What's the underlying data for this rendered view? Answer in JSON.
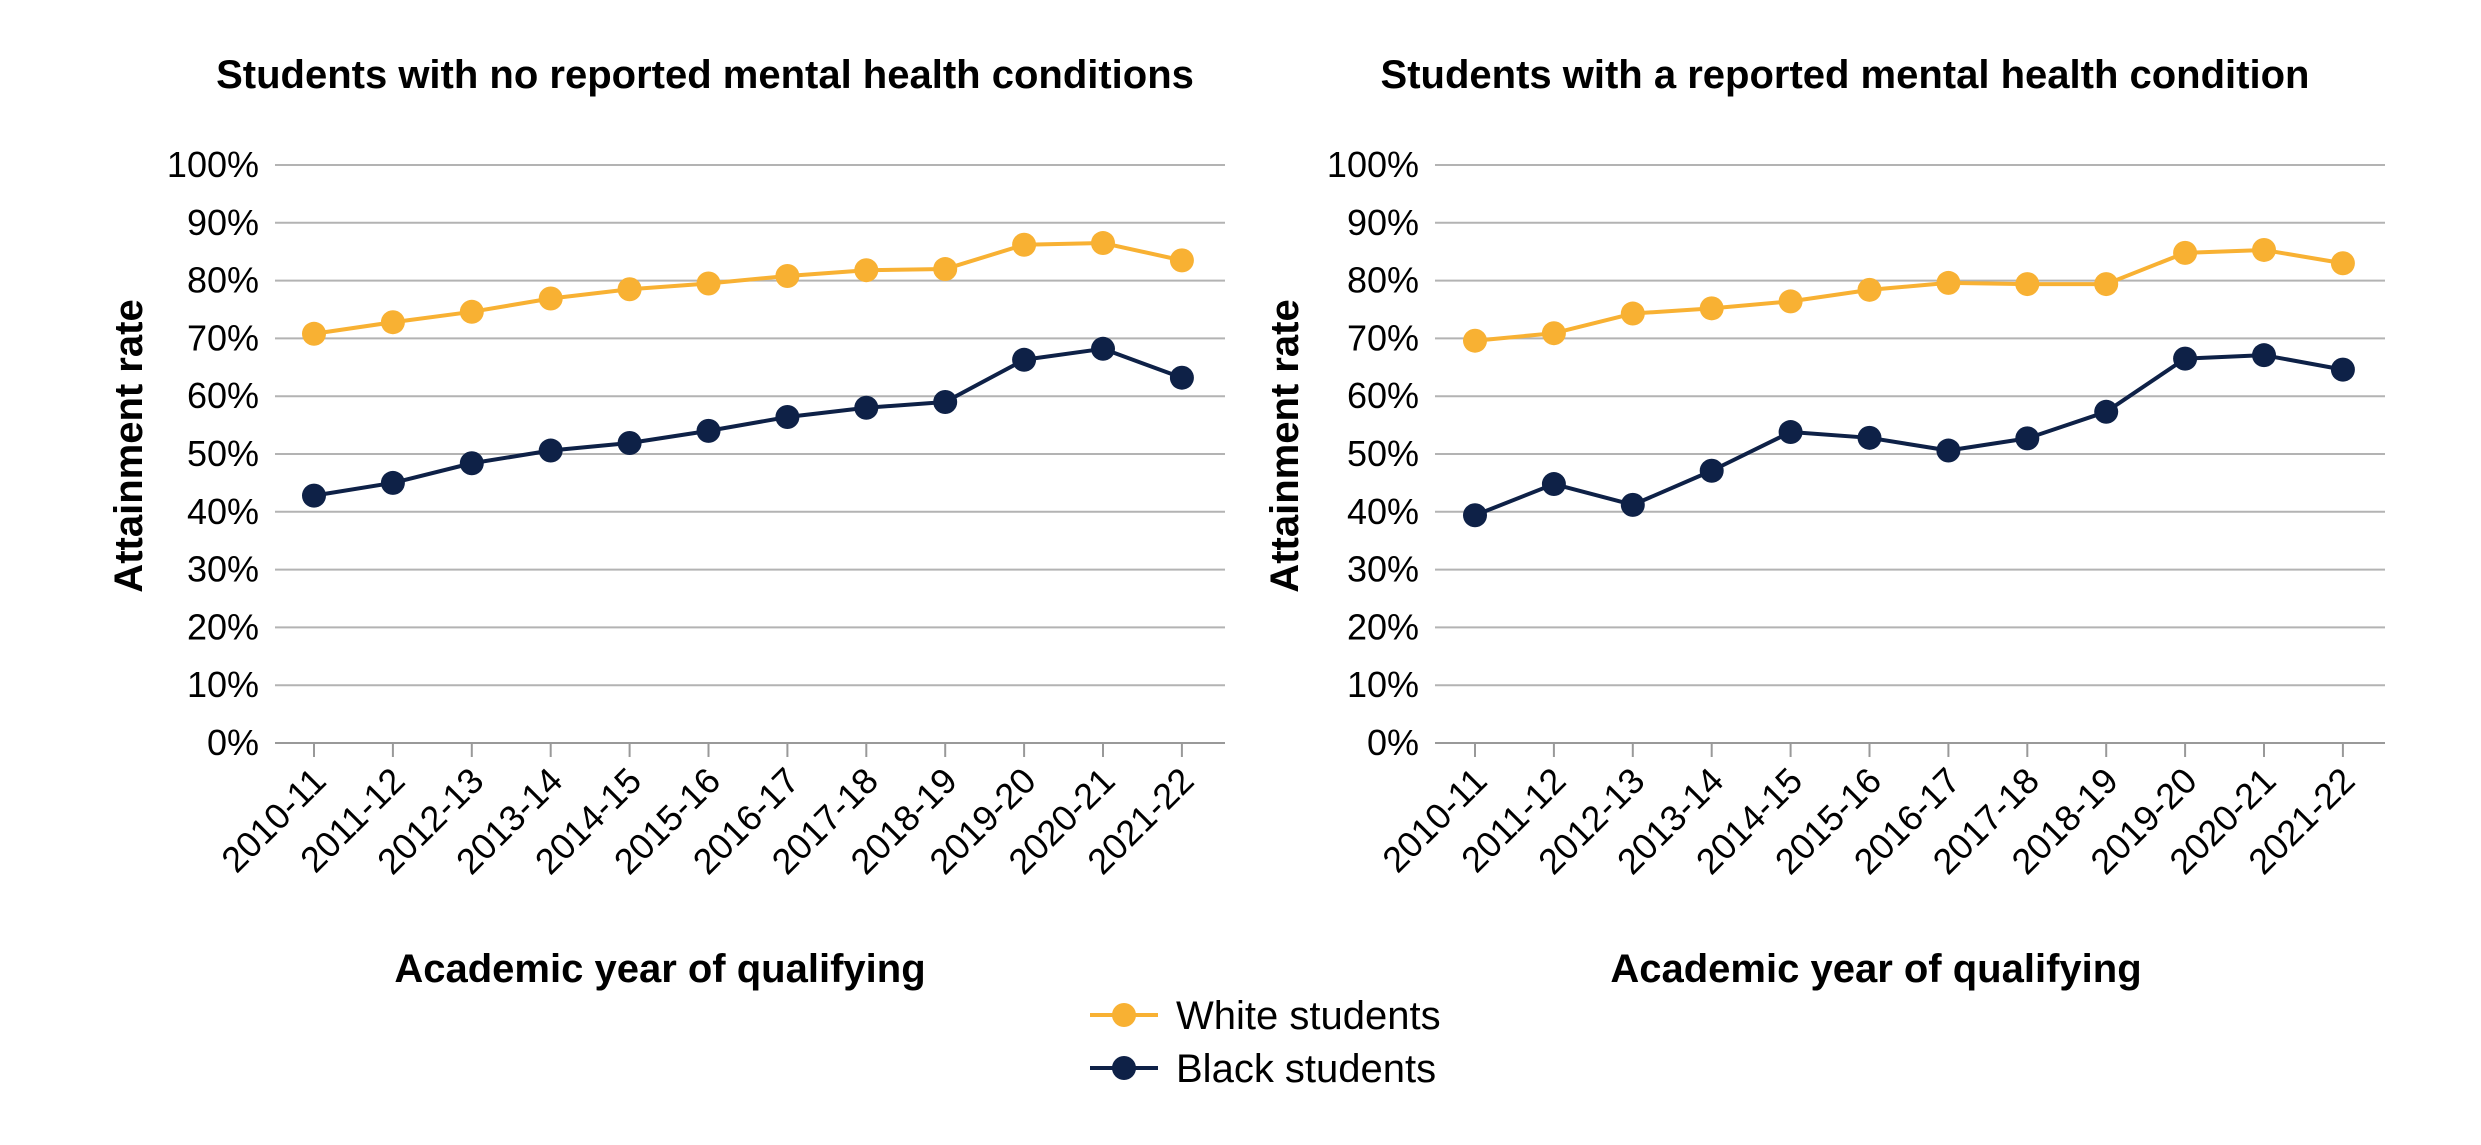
{
  "colors": {
    "white_students": "#F8B133",
    "black_students": "#0E2147",
    "gridline": "#b3b3b3",
    "axis": "#999999"
  },
  "legend": {
    "items": [
      {
        "label": "White students",
        "color": "#F8B133"
      },
      {
        "label": "Black students",
        "color": "#0E2147"
      }
    ]
  },
  "chart_data": [
    {
      "type": "line",
      "title": "Students with no reported mental health conditions",
      "xlabel": "Academic year of qualifying",
      "ylabel": "Attainment rate",
      "ylim": [
        0,
        100
      ],
      "y_ticks": [
        "0%",
        "10%",
        "20%",
        "30%",
        "40%",
        "50%",
        "60%",
        "70%",
        "80%",
        "90%",
        "100%"
      ],
      "categories": [
        "2010-11",
        "2011-12",
        "2012-13",
        "2013-14",
        "2014-15",
        "2015-16",
        "2016-17",
        "2017-18",
        "2018-19",
        "2019-20",
        "2020-21",
        "2021-22"
      ],
      "grid": true,
      "series": [
        {
          "name": "White students",
          "values": [
            70.8,
            72.8,
            74.6,
            76.9,
            78.5,
            79.5,
            80.8,
            81.8,
            82.0,
            86.2,
            86.5,
            83.5
          ]
        },
        {
          "name": "Black students",
          "values": [
            42.8,
            45.0,
            48.4,
            50.6,
            51.9,
            54.0,
            56.4,
            58.0,
            59.0,
            66.3,
            68.2,
            63.2
          ]
        }
      ]
    },
    {
      "type": "line",
      "title": "Students with a reported mental health condition",
      "xlabel": "Academic year of qualifying",
      "ylabel": "Attainment rate",
      "ylim": [
        0,
        100
      ],
      "y_ticks": [
        "0%",
        "10%",
        "20%",
        "30%",
        "40%",
        "50%",
        "60%",
        "70%",
        "80%",
        "90%",
        "100%"
      ],
      "categories": [
        "2010-11",
        "2011-12",
        "2012-13",
        "2013-14",
        "2014-15",
        "2015-16",
        "2016-17",
        "2017-18",
        "2018-19",
        "2019-20",
        "2020-21",
        "2021-22"
      ],
      "grid": true,
      "series": [
        {
          "name": "White students",
          "values": [
            69.6,
            70.9,
            74.3,
            75.2,
            76.4,
            78.4,
            79.6,
            79.4,
            79.4,
            84.8,
            85.3,
            83.0
          ]
        },
        {
          "name": "Black students",
          "values": [
            39.4,
            44.8,
            41.2,
            47.1,
            53.8,
            52.8,
            50.6,
            52.7,
            57.3,
            66.5,
            67.1,
            64.6
          ]
        }
      ]
    }
  ]
}
